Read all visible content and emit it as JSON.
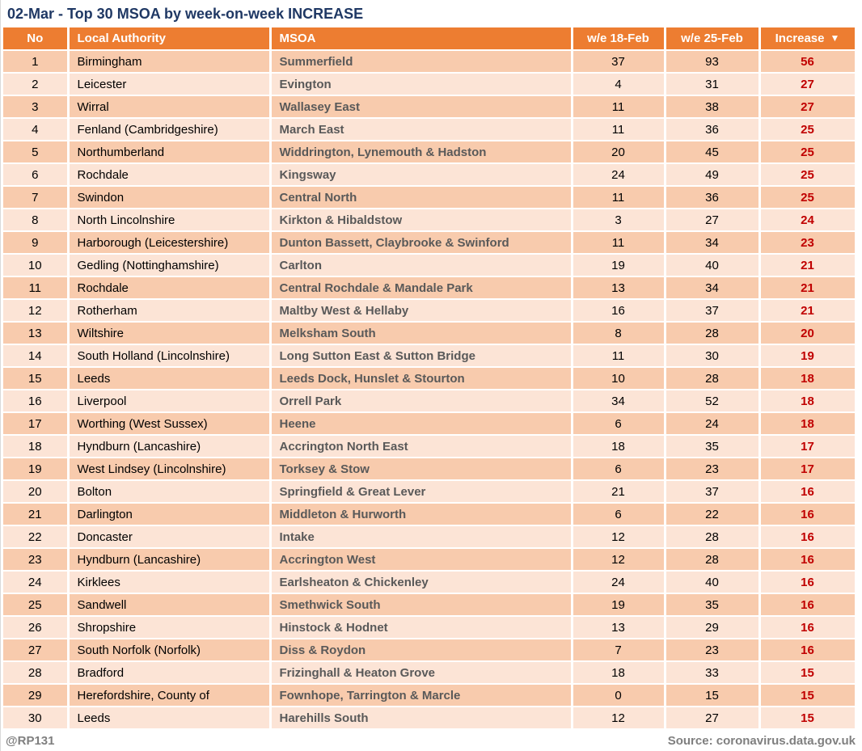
{
  "title": "02-Mar - Top 30 MSOA by week-on-week INCREASE",
  "chart_data": {
    "type": "table",
    "columns": [
      "No",
      "Local Authority",
      "MSOA",
      "w/e 18-Feb",
      "w/e 25-Feb",
      "Increase"
    ],
    "sort": {
      "column": "Increase",
      "direction": "descending",
      "indicator": "▼"
    },
    "rows": [
      [
        1,
        "Birmingham",
        "Summerfield",
        37,
        93,
        56
      ],
      [
        2,
        "Leicester",
        "Evington",
        4,
        31,
        27
      ],
      [
        3,
        "Wirral",
        "Wallasey East",
        11,
        38,
        27
      ],
      [
        4,
        "Fenland (Cambridgeshire)",
        "March East",
        11,
        36,
        25
      ],
      [
        5,
        "Northumberland",
        "Widdrington, Lynemouth & Hadston",
        20,
        45,
        25
      ],
      [
        6,
        "Rochdale",
        "Kingsway",
        24,
        49,
        25
      ],
      [
        7,
        "Swindon",
        "Central North",
        11,
        36,
        25
      ],
      [
        8,
        "North Lincolnshire",
        "Kirkton & Hibaldstow",
        3,
        27,
        24
      ],
      [
        9,
        "Harborough (Leicestershire)",
        "Dunton Bassett, Claybrooke & Swinford",
        11,
        34,
        23
      ],
      [
        10,
        "Gedling (Nottinghamshire)",
        "Carlton",
        19,
        40,
        21
      ],
      [
        11,
        "Rochdale",
        "Central Rochdale & Mandale Park",
        13,
        34,
        21
      ],
      [
        12,
        "Rotherham",
        "Maltby West & Hellaby",
        16,
        37,
        21
      ],
      [
        13,
        "Wiltshire",
        "Melksham South",
        8,
        28,
        20
      ],
      [
        14,
        "South Holland (Lincolnshire)",
        "Long Sutton East & Sutton Bridge",
        11,
        30,
        19
      ],
      [
        15,
        "Leeds",
        "Leeds Dock, Hunslet & Stourton",
        10,
        28,
        18
      ],
      [
        16,
        "Liverpool",
        "Orrell Park",
        34,
        52,
        18
      ],
      [
        17,
        "Worthing (West Sussex)",
        "Heene",
        6,
        24,
        18
      ],
      [
        18,
        "Hyndburn (Lancashire)",
        "Accrington North East",
        18,
        35,
        17
      ],
      [
        19,
        "West Lindsey (Lincolnshire)",
        "Torksey & Stow",
        6,
        23,
        17
      ],
      [
        20,
        "Bolton",
        "Springfield & Great Lever",
        21,
        37,
        16
      ],
      [
        21,
        "Darlington",
        "Middleton & Hurworth",
        6,
        22,
        16
      ],
      [
        22,
        "Doncaster",
        "Intake",
        12,
        28,
        16
      ],
      [
        23,
        "Hyndburn (Lancashire)",
        "Accrington West",
        12,
        28,
        16
      ],
      [
        24,
        "Kirklees",
        "Earlsheaton & Chickenley",
        24,
        40,
        16
      ],
      [
        25,
        "Sandwell",
        "Smethwick South",
        19,
        35,
        16
      ],
      [
        26,
        "Shropshire",
        "Hinstock & Hodnet",
        13,
        29,
        16
      ],
      [
        27,
        "South Norfolk (Norfolk)",
        "Diss & Roydon",
        7,
        23,
        16
      ],
      [
        28,
        "Bradford",
        "Frizinghall & Heaton Grove",
        18,
        33,
        15
      ],
      [
        29,
        "Herefordshire, County of",
        "Fownhope, Tarrington & Marcle",
        0,
        15,
        15
      ],
      [
        30,
        "Leeds",
        "Harehills South",
        12,
        27,
        15
      ]
    ]
  },
  "footer": {
    "handle": "@RP131",
    "source": "Source: coronavirus.data.gov.uk"
  },
  "colors": {
    "header_bg": "#ED7D31",
    "header_text": "#FFFFFF",
    "row_dark_bg": "#F8CBAD",
    "row_light_bg": "#FCE4D6",
    "title_text": "#1F3864",
    "msoa_text": "#595959",
    "increase_text": "#C00000",
    "footer_text": "#7F7F7F"
  }
}
